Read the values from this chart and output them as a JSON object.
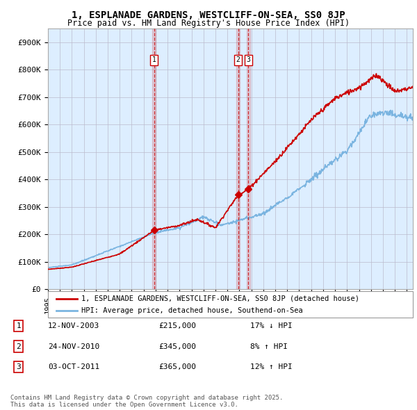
{
  "title": "1, ESPLANADE GARDENS, WESTCLIFF-ON-SEA, SS0 8JP",
  "subtitle": "Price paid vs. HM Land Registry's House Price Index (HPI)",
  "ylim": [
    0,
    950000
  ],
  "yticks": [
    0,
    100000,
    200000,
    300000,
    400000,
    500000,
    600000,
    700000,
    800000,
    900000
  ],
  "ytick_labels": [
    "£0",
    "£100K",
    "£200K",
    "£300K",
    "£400K",
    "£500K",
    "£600K",
    "£700K",
    "£800K",
    "£900K"
  ],
  "sales": [
    {
      "date_x": 2003.87,
      "price": 215000,
      "label": "1"
    },
    {
      "date_x": 2010.9,
      "price": 345000,
      "label": "2"
    },
    {
      "date_x": 2011.75,
      "price": 365000,
      "label": "3"
    }
  ],
  "sale_color": "#cc0000",
  "hpi_color": "#7ab4e0",
  "plot_bg_color": "#ddeeff",
  "legend_sale_label": "1, ESPLANADE GARDENS, WESTCLIFF-ON-SEA, SS0 8JP (detached house)",
  "legend_hpi_label": "HPI: Average price, detached house, Southend-on-Sea",
  "annotation_box": [
    {
      "num": "1",
      "date": "12-NOV-2003",
      "price": "£215,000",
      "pct": "17% ↓ HPI"
    },
    {
      "num": "2",
      "date": "24-NOV-2010",
      "price": "£345,000",
      "pct": "8% ↑ HPI"
    },
    {
      "num": "3",
      "date": "03-OCT-2011",
      "price": "£365,000",
      "pct": "12% ↑ HPI"
    }
  ],
  "footnote": "Contains HM Land Registry data © Crown copyright and database right 2025.\nThis data is licensed under the Open Government Licence v3.0.",
  "background_color": "#ffffff",
  "grid_color": "#bbbbcc",
  "vline_color": "#cc0000",
  "xmin": 1995,
  "xmax": 2025.5
}
